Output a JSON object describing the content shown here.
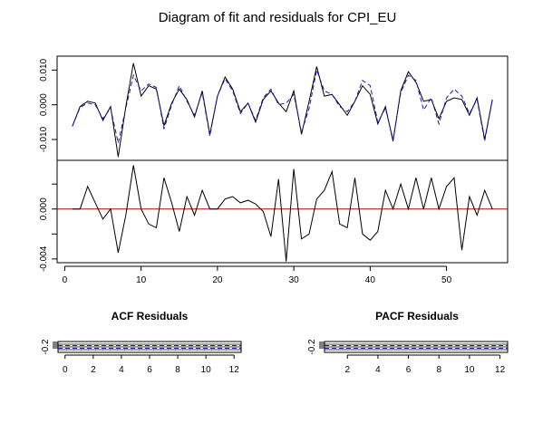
{
  "title": "Diagram of fit and residuals for CPI_EU",
  "chart_data": [
    {
      "type": "line",
      "panel": "fit",
      "x_range": [
        1,
        56
      ],
      "xlim": [
        -1,
        58
      ],
      "ylim": [
        -0.016,
        0.014
      ],
      "y_ticks": [
        -0.01,
        0.0,
        0.01
      ],
      "y_tick_labels": [
        "-0.010",
        "0.000",
        "0.010"
      ],
      "series": [
        {
          "style": "solid",
          "color": "#000000",
          "values": [
            -0.0062,
            -0.0005,
            0.001,
            0.0005,
            -0.0045,
            -0.0005,
            -0.015,
            -0.0005,
            0.012,
            0.0025,
            0.0055,
            0.0045,
            -0.006,
            0.0005,
            0.0045,
            0.0015,
            -0.0035,
            0.004,
            -0.0085,
            0.0025,
            0.008,
            0.0045,
            -0.002,
            0.0005,
            -0.005,
            0.0015,
            0.004,
            0.0005,
            -0.002,
            0.004,
            -0.0085,
            0.001,
            0.011,
            0.0025,
            0.003,
            0.0,
            -0.003,
            0.001,
            0.0055,
            0.003,
            -0.0055,
            -0.0005,
            -0.0105,
            0.004,
            0.0095,
            0.0065,
            0.001,
            0.0015,
            -0.004,
            0.001,
            0.002,
            0.0015,
            -0.003,
            0.002,
            -0.01,
            0.0015
          ]
        },
        {
          "style": "dashed",
          "color": "#1a1aa6",
          "values": [
            -0.0062,
            -0.0008,
            0.0005,
            0.0,
            -0.004,
            -0.001,
            -0.011,
            -0.001,
            0.0085,
            0.004,
            0.006,
            0.005,
            -0.007,
            0.0,
            0.0055,
            0.001,
            -0.003,
            0.0035,
            -0.009,
            0.0025,
            0.0075,
            0.004,
            -0.0025,
            0.0005,
            -0.0045,
            0.002,
            0.0045,
            0.0,
            0.0005,
            0.003,
            -0.008,
            -0.001,
            0.01,
            0.004,
            0.003,
            -0.0005,
            -0.002,
            0.001,
            0.007,
            0.0055,
            -0.005,
            -0.001,
            -0.01,
            0.0035,
            0.0085,
            0.007,
            -0.0015,
            0.002,
            -0.0055,
            0.002,
            0.0045,
            0.0025,
            -0.0025,
            0.0015,
            -0.0105,
            0.0015
          ]
        }
      ]
    },
    {
      "type": "line",
      "panel": "residuals",
      "xlim": [
        -1,
        58
      ],
      "ylim": [
        -0.0043,
        0.0039
      ],
      "y_ticks": [
        -0.004,
        0.0
      ],
      "y_tick_labels": [
        "-0.004",
        "0.000"
      ],
      "minor_y_ticks": [
        -0.002,
        0.002
      ],
      "x_ticks": [
        0,
        10,
        20,
        30,
        40,
        50
      ],
      "x_tick_labels": [
        "0",
        "10",
        "20",
        "30",
        "40",
        "50"
      ],
      "reference_line": {
        "y": 0,
        "color": "#b40000"
      },
      "series": [
        {
          "style": "solid",
          "color": "#000000",
          "values": [
            0.0,
            0.0,
            0.0018,
            0.0005,
            -0.0008,
            0.0,
            -0.0035,
            -0.0005,
            0.0035,
            0.0,
            -0.0012,
            -0.0015,
            0.0025,
            0.0005,
            -0.0018,
            0.001,
            -0.0005,
            0.0015,
            0.0,
            0.0,
            0.0008,
            0.001,
            0.0005,
            0.0007,
            0.0004,
            -0.0002,
            -0.0022,
            0.0024,
            -0.0042,
            0.0032,
            -0.0024,
            -0.002,
            0.0008,
            0.0015,
            0.003,
            -0.0012,
            -0.0015,
            0.0025,
            -0.002,
            -0.0025,
            -0.0018,
            0.0015,
            0.0,
            0.002,
            0.0,
            0.0025,
            0.0,
            0.0025,
            0.0,
            0.0018,
            0.0025,
            -0.0033,
            0.001,
            -0.0005,
            0.0015,
            0.0
          ]
        }
      ]
    },
    {
      "type": "bar",
      "panel": "acf",
      "title": "ACF Residuals",
      "xlim": [
        -0.5,
        12.5
      ],
      "x_ticks": [
        0,
        2,
        4,
        6,
        8,
        10,
        12
      ],
      "x_tick_labels": [
        "0",
        "2",
        "4",
        "6",
        "8",
        "10",
        "12"
      ],
      "y_tick_labels": [
        "-0.2"
      ],
      "confidence_band_color": "#1a1aa6"
    },
    {
      "type": "bar",
      "panel": "pacf",
      "title": "PACF Residuals",
      "xlim": [
        0.5,
        12.5
      ],
      "x_ticks": [
        2,
        4,
        6,
        8,
        10,
        12
      ],
      "x_tick_labels": [
        "2",
        "4",
        "6",
        "8",
        "10",
        "12"
      ],
      "y_tick_labels": [
        "-0.2"
      ],
      "confidence_band_color": "#1a1aa6"
    }
  ]
}
